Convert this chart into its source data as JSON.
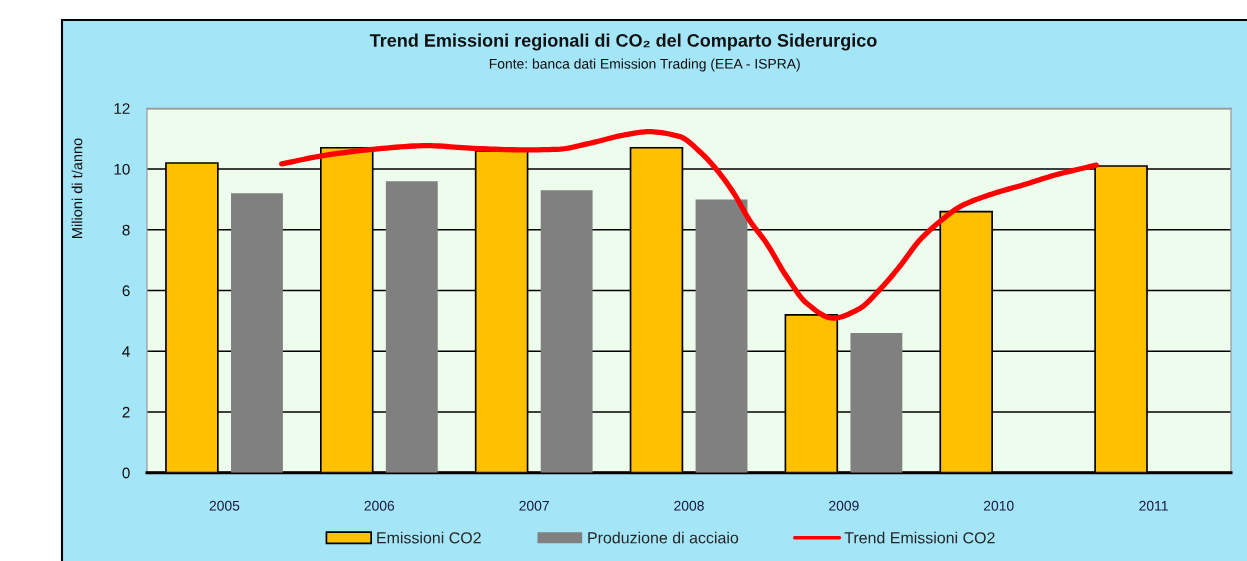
{
  "chart_data": {
    "type": "bar",
    "title": "Trend Emissioni regionali di CO₂ del Comparto Siderurgico",
    "subtitle": "Fonte: banca dati Emission Trading (EEA - ISPRA)",
    "ylabel": "Milioni di t/anno",
    "x": [
      2005,
      2006,
      2007,
      2008,
      2009,
      2010,
      2011
    ],
    "xlim": [
      2004.5,
      2011.5
    ],
    "xticks": [
      2005,
      2006,
      2007,
      2008,
      2009,
      2010,
      2011
    ],
    "ylim": [
      0,
      12
    ],
    "yticks": [
      0,
      2,
      4,
      6,
      8,
      10,
      12
    ],
    "grid": "y",
    "legend": "bottom",
    "series": [
      {
        "name": "Emissioni CO2",
        "color": "#ffc000",
        "values": [
          10.2,
          10.7,
          10.6,
          10.7,
          5.2,
          8.6,
          10.1
        ]
      },
      {
        "name": "Produzione di acciaio",
        "color": "#808080",
        "values": [
          9.2,
          9.6,
          9.3,
          9.0,
          4.6,
          null,
          null
        ]
      },
      {
        "name": "Trend Emissioni CO2",
        "type": "line",
        "color": "#ff0000",
        "x": [
          2005.37,
          2005.66,
          2005.96,
          2006.31,
          2006.61,
          2006.95,
          2007.15,
          2007.36,
          2007.58,
          2007.74,
          2007.94,
          2008.07,
          2008.18,
          2008.29,
          2008.39,
          2008.5,
          2008.63,
          2008.76,
          2008.93,
          2009.1,
          2009.23,
          2009.36,
          2009.49,
          2009.62,
          2009.75,
          2009.94,
          2010.16,
          2010.37,
          2010.63
        ],
        "values": [
          10.17,
          10.46,
          10.65,
          10.77,
          10.68,
          10.63,
          10.65,
          10.85,
          11.12,
          11.23,
          11.07,
          10.57,
          9.97,
          9.2,
          8.32,
          7.56,
          6.46,
          5.58,
          5.09,
          5.4,
          6.02,
          6.79,
          7.66,
          8.27,
          8.76,
          9.15,
          9.48,
          9.81,
          10.13
        ]
      }
    ]
  }
}
